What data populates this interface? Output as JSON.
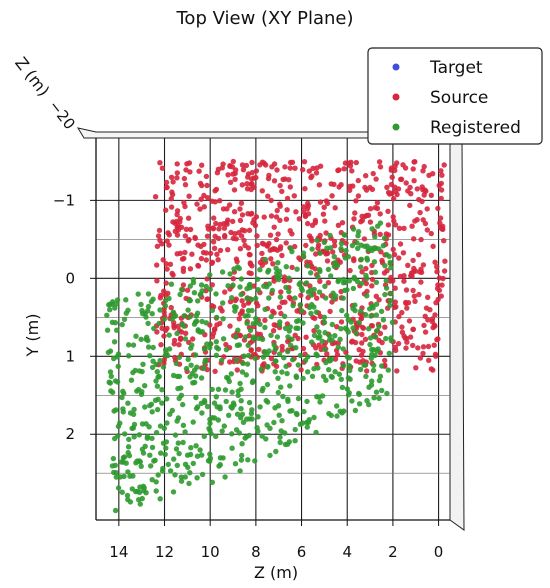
{
  "chart_data": {
    "type": "scatter",
    "title": "Top View (XY Plane)",
    "xlabel": "Z (m)",
    "ylabel": "Y (m)",
    "zlabel": "Z (m)",
    "x_ticks": [
      "14",
      "12",
      "10",
      "8",
      "6",
      "4",
      "2",
      "0"
    ],
    "y_ticks": [
      "−1",
      "0",
      "1",
      "2"
    ],
    "depth_tick_label": "−20",
    "xlim": [
      15,
      -0.5
    ],
    "ylim": [
      -1.8,
      3.1
    ],
    "grid": true,
    "legend": "top-right",
    "series": [
      {
        "name": "Target",
        "color": "#3f4fd8",
        "points": []
      },
      {
        "name": "Source",
        "color": "#d7263d",
        "region": {
          "x": [
            -0.3,
            12.4
          ],
          "y": [
            -1.5,
            1.2
          ]
        },
        "count": 900
      },
      {
        "name": "Registered",
        "color": "#2f9a2f",
        "region_polygon": [
          [
            14.6,
            0.3
          ],
          [
            9.5,
            -0.1
          ],
          [
            2.3,
            -0.8
          ],
          [
            1.9,
            0.2
          ],
          [
            2.2,
            1.5
          ],
          [
            5.5,
            2.0
          ],
          [
            9.5,
            2.6
          ],
          [
            14.2,
            3.0
          ]
        ],
        "count": 800
      }
    ]
  }
}
